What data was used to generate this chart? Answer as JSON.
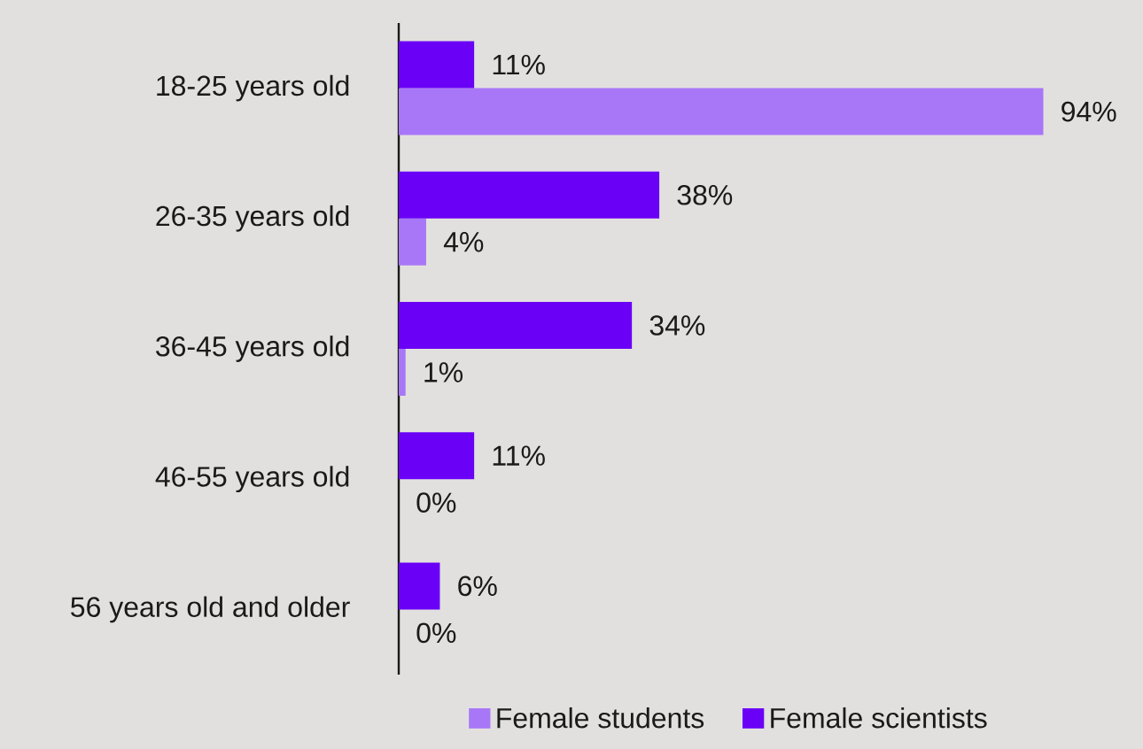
{
  "chart_data": {
    "type": "bar",
    "orientation": "horizontal",
    "categories": [
      "18-25 years old",
      "26-35 years old",
      "36-45 years old",
      "46-55 years old",
      "56 years old and older"
    ],
    "series": [
      {
        "name": "Female students",
        "color": "#a877f7",
        "values": [
          94,
          4,
          1,
          0,
          0
        ],
        "value_labels": [
          "94%",
          "4%",
          "1%",
          "0%",
          "0%"
        ]
      },
      {
        "name": "Female scientists",
        "color": "#6a00f5",
        "values": [
          11,
          38,
          34,
          11,
          6
        ],
        "value_labels": [
          "11%",
          "38%",
          "34%",
          "11%",
          "6%"
        ]
      }
    ],
    "legend": "bottom"
  }
}
